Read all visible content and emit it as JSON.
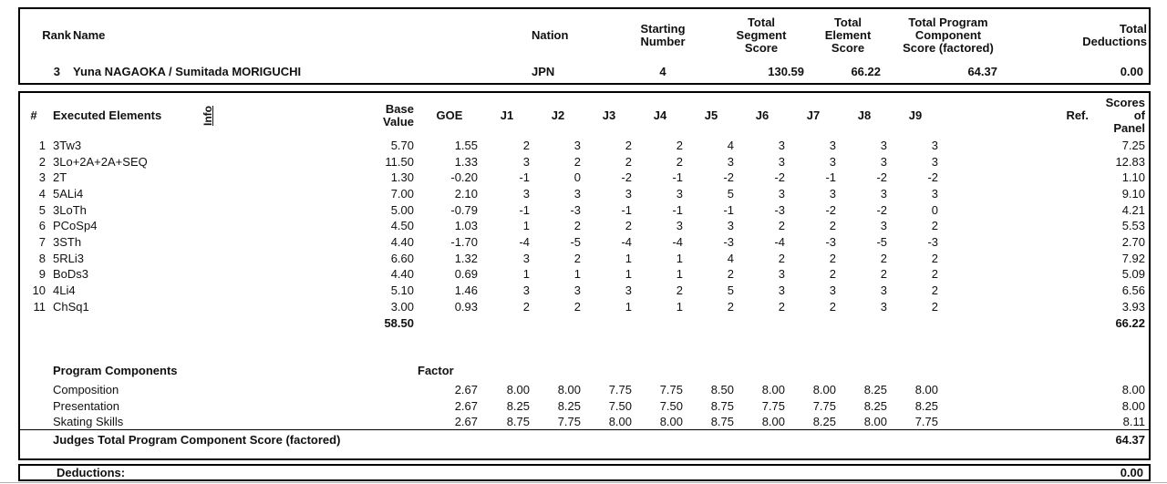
{
  "header": {
    "rank_label": "Rank",
    "name_label": "Name",
    "nation_label": "Nation",
    "starting_number_label": "Starting\nNumber",
    "total_segment_score_label": "Total\nSegment\nScore",
    "total_element_score_label": "Total\nElement\nScore",
    "total_program_component_label": "Total Program\nComponent\nScore (factored)",
    "total_deductions_label": "Total\nDeductions"
  },
  "competitor": {
    "rank": "3",
    "name": "Yuna NAGAOKA / Sumitada MORIGUCHI",
    "nation": "JPN",
    "starting_number": "4",
    "total_segment_score": "130.59",
    "total_element_score": "66.22",
    "total_program_component_score": "64.37",
    "total_deductions": "0.00"
  },
  "elements_table": {
    "headers": {
      "num": "#",
      "executed": "Executed Elements",
      "info": "Info",
      "base_value": "Base\nValue",
      "goe": "GOE",
      "judges": [
        "J1",
        "J2",
        "J3",
        "J4",
        "J5",
        "J6",
        "J7",
        "J8",
        "J9"
      ],
      "ref": "Ref.",
      "panel": "Scores of\nPanel"
    },
    "rows": [
      {
        "num": "1",
        "name": "3Tw3",
        "info": "",
        "base": "5.70",
        "goe": "1.55",
        "judges": [
          "2",
          "3",
          "2",
          "2",
          "4",
          "3",
          "3",
          "3",
          "3"
        ],
        "ref": "",
        "panel": "7.25"
      },
      {
        "num": "2",
        "name": "3Lo+2A+2A+SEQ",
        "info": "",
        "base": "11.50",
        "goe": "1.33",
        "judges": [
          "3",
          "2",
          "2",
          "2",
          "3",
          "3",
          "3",
          "3",
          "3"
        ],
        "ref": "",
        "panel": "12.83"
      },
      {
        "num": "3",
        "name": "2T",
        "info": "",
        "base": "1.30",
        "goe": "-0.20",
        "judges": [
          "-1",
          "0",
          "-2",
          "-1",
          "-2",
          "-2",
          "-1",
          "-2",
          "-2"
        ],
        "ref": "",
        "panel": "1.10"
      },
      {
        "num": "4",
        "name": "5ALi4",
        "info": "",
        "base": "7.00",
        "goe": "2.10",
        "judges": [
          "3",
          "3",
          "3",
          "3",
          "5",
          "3",
          "3",
          "3",
          "3"
        ],
        "ref": "",
        "panel": "9.10"
      },
      {
        "num": "5",
        "name": "3LoTh",
        "info": "",
        "base": "5.00",
        "goe": "-0.79",
        "judges": [
          "-1",
          "-3",
          "-1",
          "-1",
          "-1",
          "-3",
          "-2",
          "-2",
          "0"
        ],
        "ref": "",
        "panel": "4.21"
      },
      {
        "num": "6",
        "name": "PCoSp4",
        "info": "",
        "base": "4.50",
        "goe": "1.03",
        "judges": [
          "1",
          "2",
          "2",
          "3",
          "3",
          "2",
          "2",
          "3",
          "2"
        ],
        "ref": "",
        "panel": "5.53"
      },
      {
        "num": "7",
        "name": "3STh",
        "info": "",
        "base": "4.40",
        "goe": "-1.70",
        "judges": [
          "-4",
          "-5",
          "-4",
          "-4",
          "-3",
          "-4",
          "-3",
          "-5",
          "-3"
        ],
        "ref": "",
        "panel": "2.70"
      },
      {
        "num": "8",
        "name": "5RLi3",
        "info": "",
        "base": "6.60",
        "goe": "1.32",
        "judges": [
          "3",
          "2",
          "1",
          "1",
          "4",
          "2",
          "2",
          "2",
          "2"
        ],
        "ref": "",
        "panel": "7.92"
      },
      {
        "num": "9",
        "name": "BoDs3",
        "info": "",
        "base": "4.40",
        "goe": "0.69",
        "judges": [
          "1",
          "1",
          "1",
          "1",
          "2",
          "3",
          "2",
          "2",
          "2"
        ],
        "ref": "",
        "panel": "5.09"
      },
      {
        "num": "10",
        "name": "4Li4",
        "info": "",
        "base": "5.10",
        "goe": "1.46",
        "judges": [
          "3",
          "3",
          "3",
          "2",
          "5",
          "3",
          "3",
          "3",
          "2"
        ],
        "ref": "",
        "panel": "6.56"
      },
      {
        "num": "11",
        "name": "ChSq1",
        "info": "",
        "base": "3.00",
        "goe": "0.93",
        "judges": [
          "2",
          "2",
          "1",
          "1",
          "2",
          "2",
          "2",
          "3",
          "2"
        ],
        "ref": "",
        "panel": "3.93"
      }
    ],
    "totals": {
      "base": "58.50",
      "panel": "66.22"
    }
  },
  "program_components": {
    "title": "Program Components",
    "factor_label": "Factor",
    "rows": [
      {
        "name": "Composition",
        "factor": "2.67",
        "judges": [
          "8.00",
          "8.00",
          "7.75",
          "7.75",
          "8.50",
          "8.00",
          "8.00",
          "8.25",
          "8.00"
        ],
        "panel": "8.00"
      },
      {
        "name": "Presentation",
        "factor": "2.67",
        "judges": [
          "8.25",
          "8.25",
          "7.50",
          "7.50",
          "8.75",
          "7.75",
          "7.75",
          "8.25",
          "8.25"
        ],
        "panel": "8.00"
      },
      {
        "name": "Skating Skills",
        "factor": "2.67",
        "judges": [
          "8.75",
          "7.75",
          "8.00",
          "8.00",
          "8.75",
          "8.00",
          "8.25",
          "8.00",
          "7.75"
        ],
        "panel": "8.11"
      }
    ],
    "total_label": "Judges Total Program Component Score (factored)",
    "total_value": "64.37"
  },
  "deductions": {
    "label": "Deductions:",
    "value": "0.00"
  }
}
